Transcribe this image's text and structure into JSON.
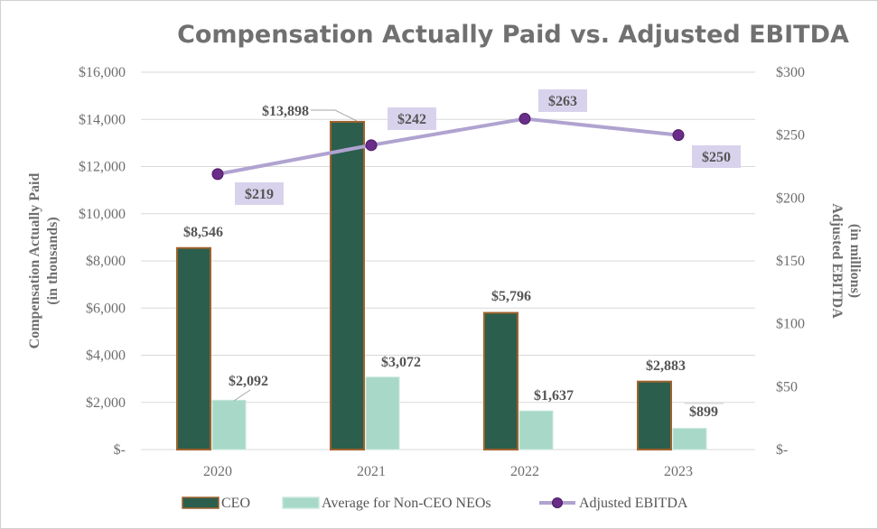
{
  "chart_data": {
    "type": "bar",
    "title": "Compensation Actually Paid vs. Adjusted EBITDA",
    "categories": [
      "2020",
      "2021",
      "2022",
      "2023"
    ],
    "ylabel": "Compensation Actually Paid",
    "ylabel_sub": "(in thousands)",
    "y2label": "Adjusted EBITDA",
    "y2label_sub": "(in millions)",
    "ylim": [
      0,
      16000
    ],
    "y2lim": [
      0,
      300
    ],
    "yticks": [
      {
        "value": 0,
        "label": "$-"
      },
      {
        "value": 2000,
        "label": "$2,000"
      },
      {
        "value": 4000,
        "label": "$4,000"
      },
      {
        "value": 6000,
        "label": "$6,000"
      },
      {
        "value": 8000,
        "label": "$8,000"
      },
      {
        "value": 10000,
        "label": "$10,000"
      },
      {
        "value": 12000,
        "label": "$12,000"
      },
      {
        "value": 14000,
        "label": "$14,000"
      },
      {
        "value": 16000,
        "label": "$16,000"
      }
    ],
    "y2ticks": [
      {
        "value": 0,
        "label": "$-"
      },
      {
        "value": 50,
        "label": "$50"
      },
      {
        "value": 100,
        "label": "$100"
      },
      {
        "value": 150,
        "label": "$150"
      },
      {
        "value": 200,
        "label": "$200"
      },
      {
        "value": 250,
        "label": "$250"
      },
      {
        "value": 300,
        "label": "$300"
      }
    ],
    "series": [
      {
        "name": "CEO",
        "type": "bar",
        "color": "#2b5e4d",
        "edge": "#a0622d",
        "values": [
          8546,
          13898,
          5796,
          2883
        ],
        "labels": [
          "$8,546",
          "$13,898",
          "$5,796",
          "$2,883"
        ]
      },
      {
        "name": "Average for Non-CEO NEOs",
        "type": "bar",
        "color": "#a8d8c8",
        "edge": "#c8e8dc",
        "values": [
          2092,
          3072,
          1637,
          899
        ],
        "labels": [
          "$2,092",
          "$3,072",
          "$1,637",
          "$899"
        ]
      },
      {
        "name": "Adjusted EBITDA",
        "type": "line",
        "axis": "right",
        "color": "#b0a3d0",
        "marker": "#6b2d8a",
        "label_bg": "#d9d2ec",
        "values": [
          219,
          242,
          263,
          250
        ],
        "labels": [
          "$219",
          "$242",
          "$263",
          "$250"
        ]
      }
    ],
    "grid": true,
    "legend": "bottom"
  }
}
